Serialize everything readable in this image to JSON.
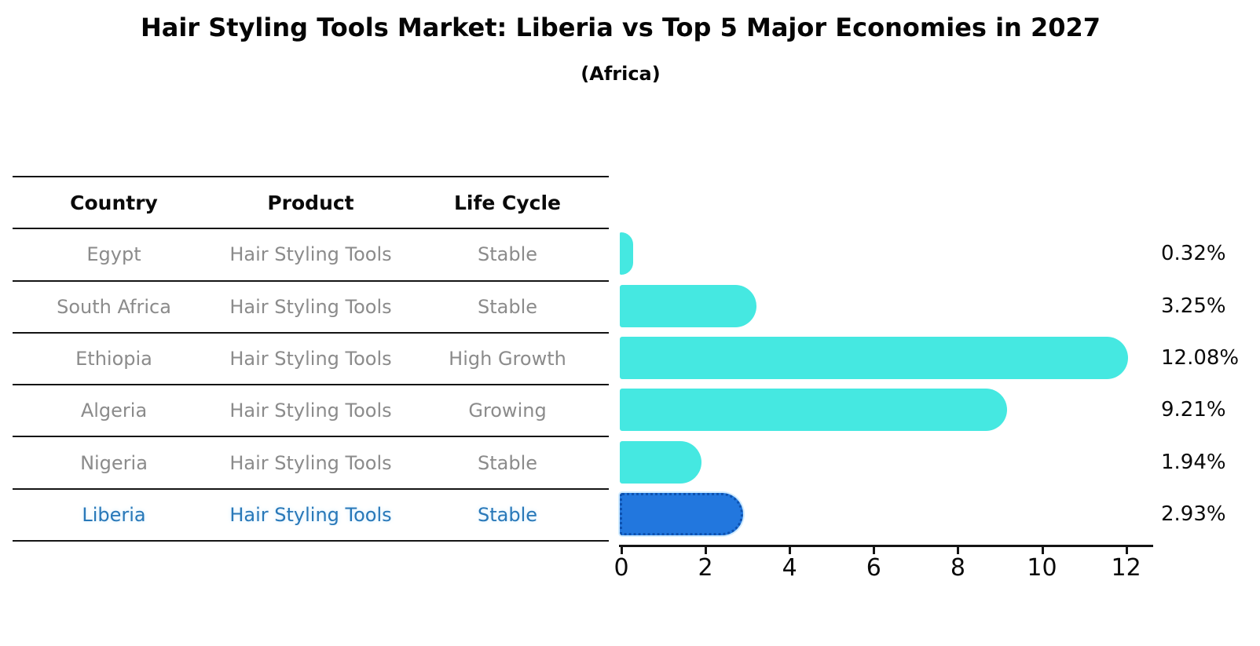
{
  "title": "Hair Styling Tools Market: Liberia vs Top 5 Major Economies in 2027",
  "subtitle": "(Africa)",
  "table": {
    "headers": [
      "Country",
      "Product",
      "Life Cycle"
    ],
    "rows": [
      {
        "country": "Egypt",
        "product": "Hair Styling Tools",
        "life_cycle": "Stable",
        "highlight": false
      },
      {
        "country": "South Africa",
        "product": "Hair Styling Tools",
        "life_cycle": "Stable",
        "highlight": false
      },
      {
        "country": "Ethiopia",
        "product": "Hair Styling Tools",
        "life_cycle": "High Growth",
        "highlight": false
      },
      {
        "country": "Algeria",
        "product": "Hair Styling Tools",
        "life_cycle": "Growing",
        "highlight": false
      },
      {
        "country": "Nigeria",
        "product": "Hair Styling Tools",
        "life_cycle": "Stable",
        "highlight": false
      },
      {
        "country": "Liberia",
        "product": "Hair Styling Tools",
        "life_cycle": "Stable",
        "highlight": true
      }
    ]
  },
  "chart_data": {
    "type": "bar",
    "orientation": "horizontal",
    "title": "Hair Styling Tools Market: Liberia vs Top 5 Major Economies in 2027",
    "subtitle": "(Africa)",
    "categories": [
      "Egypt",
      "South Africa",
      "Ethiopia",
      "Algeria",
      "Nigeria",
      "Liberia"
    ],
    "values": [
      0.32,
      3.25,
      12.08,
      9.21,
      1.94,
      2.93
    ],
    "value_labels": [
      "0.32%",
      "3.25%",
      "12.08%",
      "9.21%",
      "1.94%",
      "2.93%"
    ],
    "x_ticks": [
      "0",
      "2",
      "4",
      "6",
      "8",
      "10",
      "12"
    ],
    "xlim": [
      0,
      12.7
    ],
    "xlabel": "",
    "ylabel": "",
    "grid": false,
    "legend": "none",
    "highlight_index": 5,
    "bar_color": "#45e8e1",
    "highlight_color": "#2277de",
    "highlight_border_color": "#0d52b0"
  }
}
